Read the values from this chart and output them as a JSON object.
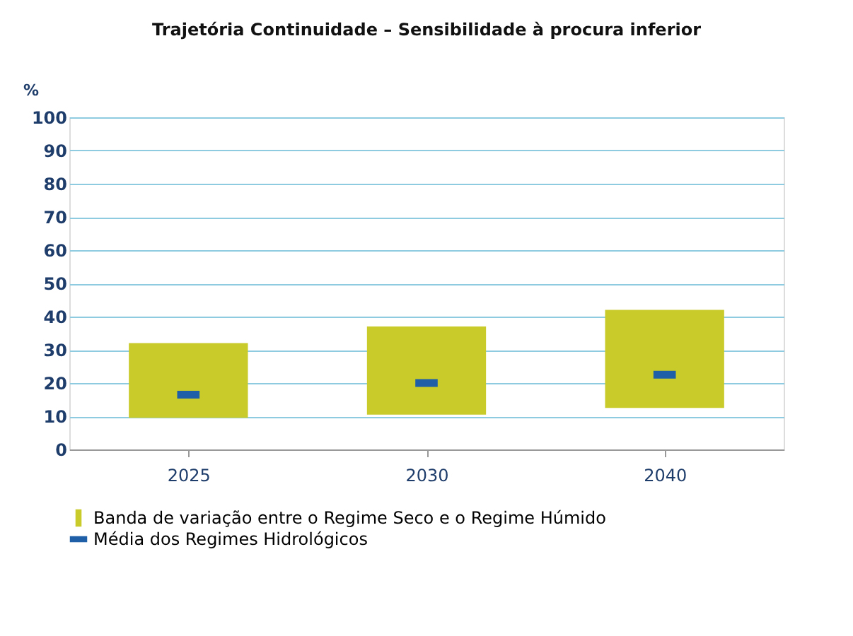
{
  "chart_data": {
    "type": "bar",
    "title": "Trajetória Continuidade – Sensibilidade à procura inferior",
    "ylabel": "%",
    "categories": [
      "2025",
      "2030",
      "2040"
    ],
    "series": [
      {
        "name": "Banda de variação entre o Regime Seco e o Regime Húmido",
        "color": "#c8cb2a",
        "base": [
          9.5,
          10.5,
          12.5
        ],
        "values": [
          22.5,
          26.5,
          29.5
        ]
      },
      {
        "name": "Média dos Regimes Hidrológicos",
        "type": "scatter",
        "color": "#1f5fa8",
        "values": [
          16.5,
          20,
          22.5
        ]
      }
    ],
    "ylim": [
      0,
      100
    ],
    "yticks": [
      0,
      10,
      20,
      30,
      40,
      50,
      60,
      70,
      80,
      90,
      100
    ],
    "grid": "y",
    "legend": "bottom"
  }
}
